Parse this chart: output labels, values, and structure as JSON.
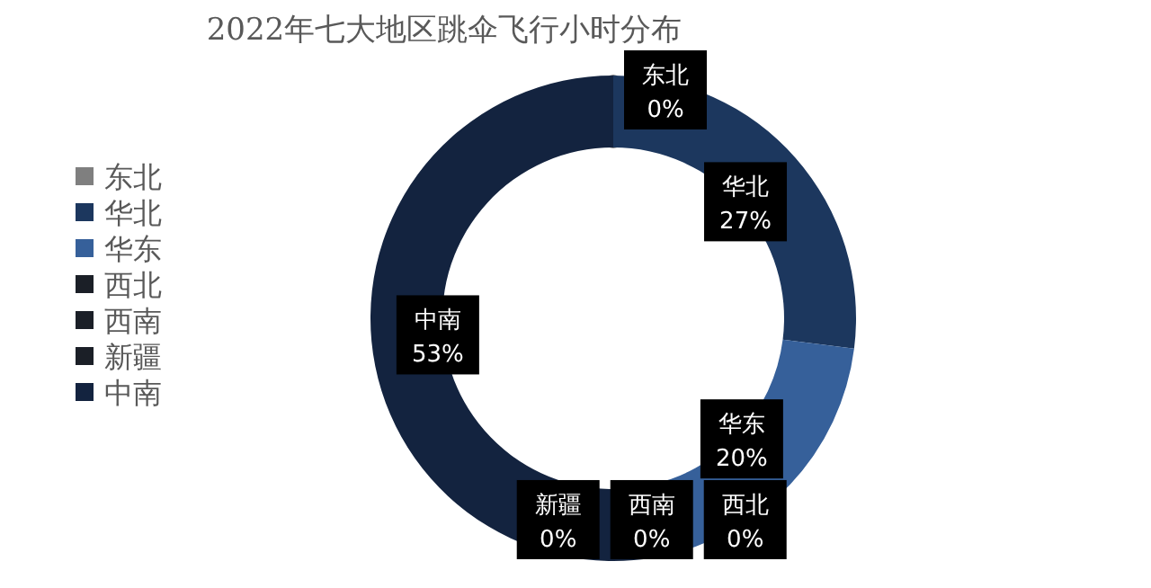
{
  "chart_data": {
    "type": "donut",
    "title": "2022年七大地区跳伞飞行小时分布",
    "categories": [
      "东北",
      "华北",
      "华东",
      "西北",
      "西南",
      "新疆",
      "中南"
    ],
    "values": [
      0,
      27,
      20,
      0,
      0,
      0,
      53
    ],
    "colors": [
      "#7f7f7f",
      "#1c375e",
      "#36609a",
      "#1b1f27",
      "#1b1f27",
      "#1b1f27",
      "#13233f"
    ],
    "value_labels": [
      "0%",
      "27%",
      "20%",
      "0%",
      "0%",
      "0%",
      "53%"
    ],
    "legend": "left"
  }
}
